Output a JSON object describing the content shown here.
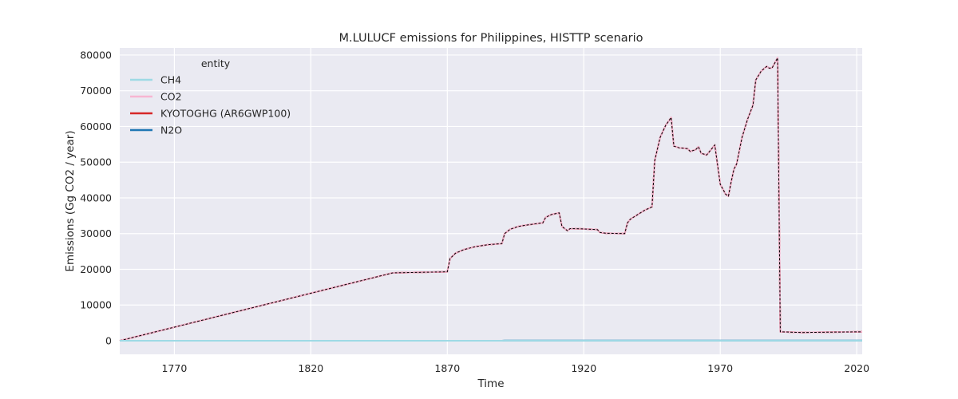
{
  "chart_data": {
    "type": "line",
    "title": "M.LULUCF emissions for Philippines, HISTTP scenario",
    "xlabel": "Time",
    "ylabel": "Emissions (Gg CO2 / year)",
    "xlim": [
      1750,
      2022
    ],
    "ylim": [
      -3800,
      82000
    ],
    "x_ticks": [
      1770,
      1820,
      1870,
      1920,
      1970,
      2020
    ],
    "y_ticks": [
      0,
      10000,
      20000,
      30000,
      40000,
      50000,
      60000,
      70000,
      80000
    ],
    "grid": true,
    "legend": {
      "title": "entity",
      "position": "top-left"
    },
    "series": [
      {
        "name": "CH4",
        "color": "#9edae5",
        "points": [
          [
            1750,
            0
          ],
          [
            1890,
            0
          ],
          [
            1891,
            30
          ],
          [
            2022,
            30
          ]
        ]
      },
      {
        "name": "CO2",
        "color": "#f7b6d2",
        "points": [
          [
            1750,
            0
          ],
          [
            1850,
            19000
          ],
          [
            1870,
            19300
          ],
          [
            1871,
            23000
          ],
          [
            1873,
            24500
          ],
          [
            1876,
            25500
          ],
          [
            1880,
            26300
          ],
          [
            1885,
            26900
          ],
          [
            1890,
            27200
          ],
          [
            1891,
            30000
          ],
          [
            1893,
            31200
          ],
          [
            1896,
            32000
          ],
          [
            1900,
            32500
          ],
          [
            1905,
            33000
          ],
          [
            1906,
            34500
          ],
          [
            1908,
            35300
          ],
          [
            1911,
            35800
          ],
          [
            1912,
            32000
          ],
          [
            1914,
            30800
          ],
          [
            1915,
            31400
          ],
          [
            1920,
            31300
          ],
          [
            1925,
            31100
          ],
          [
            1926,
            30300
          ],
          [
            1928,
            30100
          ],
          [
            1935,
            30000
          ],
          [
            1936,
            33000
          ],
          [
            1937,
            34000
          ],
          [
            1942,
            36400
          ],
          [
            1945,
            37500
          ],
          [
            1946,
            50500
          ],
          [
            1948,
            57000
          ],
          [
            1950,
            60300
          ],
          [
            1952,
            62500
          ],
          [
            1953,
            54500
          ],
          [
            1955,
            54000
          ],
          [
            1958,
            53800
          ],
          [
            1959,
            53000
          ],
          [
            1961,
            53500
          ],
          [
            1962,
            54300
          ],
          [
            1963,
            52500
          ],
          [
            1965,
            52000
          ],
          [
            1968,
            54800
          ],
          [
            1970,
            43800
          ],
          [
            1972,
            41000
          ],
          [
            1973,
            40500
          ],
          [
            1974,
            44500
          ],
          [
            1975,
            48000
          ],
          [
            1976,
            49500
          ],
          [
            1978,
            57000
          ],
          [
            1980,
            62000
          ],
          [
            1982,
            66000
          ],
          [
            1983,
            73000
          ],
          [
            1985,
            75500
          ],
          [
            1987,
            76800
          ],
          [
            1988,
            76300
          ],
          [
            1989,
            76400
          ],
          [
            1991,
            79200
          ],
          [
            1992,
            2500
          ],
          [
            2000,
            2300
          ],
          [
            2010,
            2400
          ],
          [
            2022,
            2500
          ]
        ]
      },
      {
        "name": "KYOTOGHG (AR6GWP100)",
        "color": "#d62728",
        "points": [
          [
            1750,
            0
          ],
          [
            1850,
            19000
          ],
          [
            1870,
            19300
          ],
          [
            1871,
            23000
          ],
          [
            1873,
            24500
          ],
          [
            1876,
            25500
          ],
          [
            1880,
            26300
          ],
          [
            1885,
            26900
          ],
          [
            1890,
            27200
          ],
          [
            1891,
            30000
          ],
          [
            1893,
            31200
          ],
          [
            1896,
            32000
          ],
          [
            1900,
            32500
          ],
          [
            1905,
            33000
          ],
          [
            1906,
            34500
          ],
          [
            1908,
            35300
          ],
          [
            1911,
            35800
          ],
          [
            1912,
            32000
          ],
          [
            1914,
            30800
          ],
          [
            1915,
            31400
          ],
          [
            1920,
            31300
          ],
          [
            1925,
            31100
          ],
          [
            1926,
            30300
          ],
          [
            1928,
            30100
          ],
          [
            1935,
            30000
          ],
          [
            1936,
            33000
          ],
          [
            1937,
            34000
          ],
          [
            1942,
            36400
          ],
          [
            1945,
            37500
          ],
          [
            1946,
            50500
          ],
          [
            1948,
            57000
          ],
          [
            1950,
            60300
          ],
          [
            1952,
            62500
          ],
          [
            1953,
            54500
          ],
          [
            1955,
            54000
          ],
          [
            1958,
            53800
          ],
          [
            1959,
            53000
          ],
          [
            1961,
            53500
          ],
          [
            1962,
            54300
          ],
          [
            1963,
            52500
          ],
          [
            1965,
            52000
          ],
          [
            1968,
            54800
          ],
          [
            1970,
            43800
          ],
          [
            1972,
            41000
          ],
          [
            1973,
            40500
          ],
          [
            1974,
            44500
          ],
          [
            1975,
            48000
          ],
          [
            1976,
            49500
          ],
          [
            1978,
            57000
          ],
          [
            1980,
            62000
          ],
          [
            1982,
            66000
          ],
          [
            1983,
            73000
          ],
          [
            1985,
            75500
          ],
          [
            1987,
            76800
          ],
          [
            1988,
            76300
          ],
          [
            1989,
            76400
          ],
          [
            1991,
            79200
          ],
          [
            1992,
            2500
          ],
          [
            2000,
            2300
          ],
          [
            2010,
            2400
          ],
          [
            2022,
            2500
          ]
        ]
      },
      {
        "name": "N2O",
        "color": "#1f77b4",
        "points": [
          [
            1750,
            0
          ],
          [
            1890,
            0
          ],
          [
            1891,
            40
          ],
          [
            2022,
            40
          ]
        ]
      }
    ]
  }
}
